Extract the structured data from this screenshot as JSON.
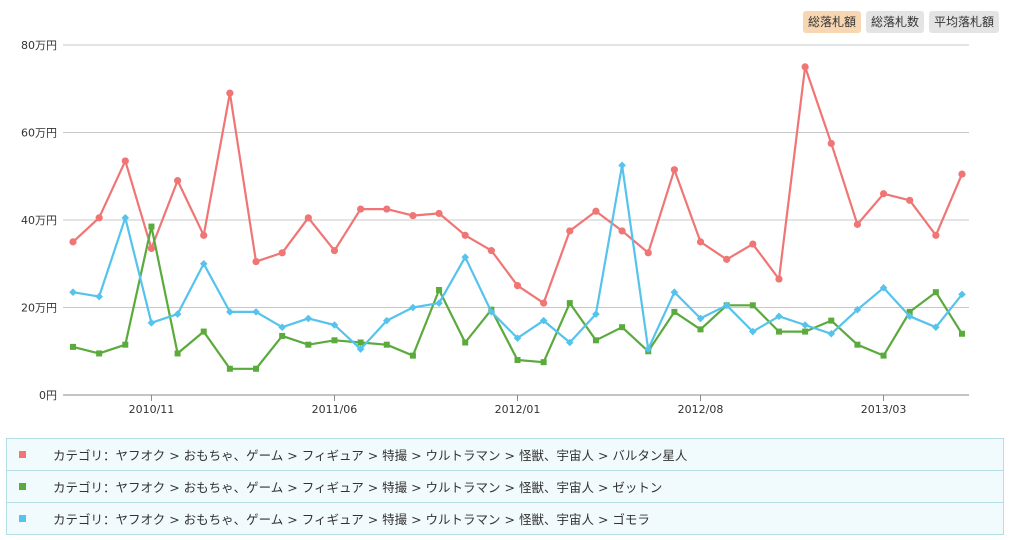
{
  "tabs": [
    {
      "label": "総落札額",
      "active": true
    },
    {
      "label": "総落札数",
      "active": false
    },
    {
      "label": "平均落札額",
      "active": false
    }
  ],
  "chart_data": {
    "type": "line",
    "title": "",
    "xlabel": "",
    "ylabel": "",
    "ylim": [
      0,
      80
    ],
    "y_ticks": [
      0,
      20,
      40,
      60,
      80
    ],
    "y_tick_labels": [
      "0円",
      "20万円",
      "40万円",
      "60万円",
      "80万円"
    ],
    "x_tick_labels": [
      {
        "index": 3,
        "label": "2010/11"
      },
      {
        "index": 10,
        "label": "2011/06"
      },
      {
        "index": 17,
        "label": "2012/01"
      },
      {
        "index": 24,
        "label": "2012/08"
      },
      {
        "index": 31,
        "label": "2013/03"
      }
    ],
    "point_count": 35,
    "series": [
      {
        "name": "カテゴリ：ヤフオク > おもちゃ、ゲーム > フィギュア > 特撮 > ウルトラマン > 怪獣、宇宙人 > バルタン星人",
        "color": "#f07575",
        "marker": "circle",
        "values": [
          35,
          40.5,
          53.5,
          33.5,
          49,
          36.5,
          69,
          30.5,
          32.5,
          40.5,
          33,
          42.5,
          42.5,
          41,
          41.5,
          36.5,
          33,
          25,
          21,
          37.5,
          42,
          37.5,
          32.5,
          51.5,
          35,
          31,
          34.5,
          26.5,
          75,
          57.5,
          39,
          46,
          44.5,
          36.5,
          50.5
        ]
      },
      {
        "name": "カテゴリ：ヤフオク > おもちゃ、ゲーム > フィギュア > 特撮 > ウルトラマン > 怪獣、宇宙人 > ゼットン",
        "color": "#5aaa3c",
        "marker": "square",
        "values": [
          11,
          9.5,
          11.5,
          38.5,
          9.5,
          14.5,
          6,
          6,
          13.5,
          11.5,
          12.5,
          12,
          11.5,
          9,
          24,
          12,
          19.5,
          8,
          7.5,
          21,
          12.5,
          15.5,
          10,
          19,
          15,
          20.5,
          20.5,
          14.5,
          14.5,
          17,
          11.5,
          9,
          19,
          23.5,
          14
        ]
      },
      {
        "name": "カテゴリ：ヤフオク > おもちゃ、ゲーム > フィギュア > 特撮 > ウルトラマン > 怪獣、宇宙人 > ゴモラ",
        "color": "#55c3ec",
        "marker": "diamond",
        "values": [
          23.5,
          22.5,
          40.5,
          16.5,
          18.5,
          30,
          19,
          19,
          15.5,
          17.5,
          16,
          10.5,
          17,
          20,
          21,
          31.5,
          19,
          13,
          17,
          12,
          18.5,
          52.5,
          10.5,
          23.5,
          17.5,
          20.5,
          14.5,
          18,
          16,
          14,
          19.5,
          24.5,
          18,
          15.5,
          23
        ]
      }
    ]
  }
}
